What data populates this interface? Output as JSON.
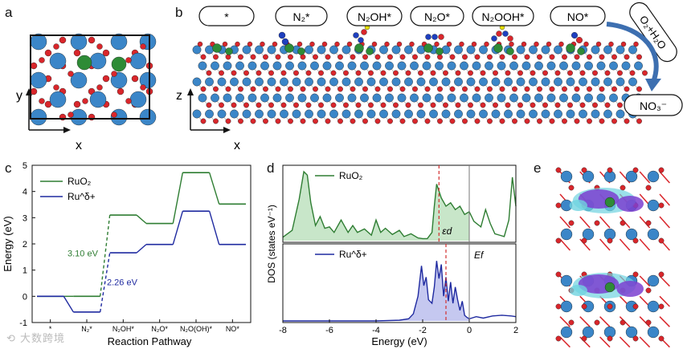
{
  "panels": {
    "a": {
      "label": "a",
      "axis_y": "y",
      "axis_x": "x"
    },
    "b": {
      "label": "b",
      "species": [
        "*",
        "N₂*",
        "N₂OH*",
        "N₂O*",
        "N₂OOH*",
        "NO*"
      ],
      "reagent": "O₂+H₂O",
      "product": "NO₃⁻",
      "axis_z": "z",
      "axis_x": "x"
    },
    "c": {
      "label": "c"
    },
    "d": {
      "label": "d"
    },
    "e": {
      "label": "e"
    }
  },
  "colors": {
    "ru": "#3b86c8",
    "o": "#d9262b",
    "n": "#1e3fbf",
    "cl": "#2e8b36",
    "h": "#e6e000",
    "ruo2": "#2e7d32",
    "rud": "#1f2aa0",
    "fill_ruo2": "#c8e6c9",
    "fill_rud": "#c5c8f0",
    "ed_line": "#d32f2f",
    "iso_purple": "#7b3fd0",
    "iso_cyan": "#6fd3e0",
    "arrow": "#3d6fb0"
  },
  "chart_data": [
    {
      "type": "line",
      "panel": "c",
      "title": "",
      "xlabel": "Reaction Pathway",
      "ylabel": "Energy (eV)",
      "ylim": [
        -1,
        5
      ],
      "yticks": [
        -1,
        0,
        1,
        2,
        3,
        4,
        5
      ],
      "categories": [
        "*",
        "N₂*",
        "N₂OH*",
        "N₂O*",
        "N₂O(OH)*",
        "NO*"
      ],
      "series": [
        {
          "name": "RuO₂",
          "values": [
            0.0,
            0.0,
            3.1,
            2.78,
            4.72,
            3.52
          ]
        },
        {
          "name": "Ru^δ+",
          "values": [
            0.0,
            -0.6,
            1.66,
            1.98,
            3.25,
            1.98
          ]
        }
      ],
      "annotations": [
        {
          "text": "3.10 eV",
          "series": "RuO₂"
        },
        {
          "text": "2.26 eV",
          "series": "Ru^δ+"
        }
      ]
    },
    {
      "type": "area",
      "panel": "d",
      "title": "",
      "xlabel": "Energy (eV)",
      "ylabel": "DOS (states eV⁻¹)",
      "xlim": [
        -8,
        2
      ],
      "xticks": [
        -8,
        -6,
        -4,
        -2,
        0,
        2
      ],
      "markers": [
        {
          "name": "εd",
          "x": -1.3,
          "subplot": 0
        },
        {
          "name": "εd",
          "x": -1.0,
          "subplot": 1
        },
        {
          "name": "Ef",
          "x": 0.0
        }
      ],
      "series": [
        {
          "name": "RuO₂",
          "x": [
            -8,
            -7.6,
            -7.3,
            -7.1,
            -6.95,
            -6.8,
            -6.6,
            -6.4,
            -6.2,
            -6.0,
            -5.8,
            -5.5,
            -5.2,
            -5.0,
            -4.8,
            -4.5,
            -4.2,
            -4.0,
            -3.8,
            -3.6,
            -3.3,
            -3.0,
            -2.8,
            -2.5,
            -2.2,
            -2.0,
            -1.8,
            -1.6,
            -1.5,
            -1.4,
            -1.2,
            -1.0,
            -0.8,
            -0.6,
            -0.4,
            -0.2,
            0.0,
            0.2,
            0.5,
            0.7,
            0.9,
            1.1,
            1.3,
            1.5,
            1.7,
            1.85,
            2.0
          ],
          "values": [
            0.05,
            0.15,
            0.6,
            1.0,
            0.95,
            0.55,
            0.22,
            0.35,
            0.18,
            0.2,
            0.12,
            0.3,
            0.12,
            0.22,
            0.12,
            0.17,
            0.08,
            0.3,
            0.12,
            0.18,
            0.09,
            0.15,
            0.06,
            0.1,
            0.04,
            0.03,
            0.03,
            0.12,
            0.5,
            0.82,
            0.62,
            0.5,
            0.55,
            0.45,
            0.5,
            0.38,
            0.42,
            0.28,
            0.2,
            0.45,
            0.25,
            0.1,
            0.08,
            0.06,
            0.3,
            0.92,
            0.5
          ]
        },
        {
          "name": "Ru^δ+",
          "x": [
            -8,
            -7,
            -6,
            -5,
            -4,
            -3,
            -2.6,
            -2.4,
            -2.2,
            -2.05,
            -1.95,
            -1.85,
            -1.75,
            -1.6,
            -1.5,
            -1.4,
            -1.3,
            -1.2,
            -1.1,
            -1.0,
            -0.9,
            -0.8,
            -0.7,
            -0.6,
            -0.5,
            -0.4,
            -0.3,
            -0.2,
            -0.1,
            0.0,
            0.3,
            0.6,
            1.0,
            1.4,
            1.8,
            2.0
          ],
          "values": [
            0.0,
            0.0,
            0.0,
            0.0,
            0.0,
            0.01,
            0.03,
            0.1,
            0.35,
            0.78,
            0.5,
            0.62,
            0.3,
            0.25,
            0.48,
            0.85,
            0.6,
            0.8,
            0.35,
            0.62,
            0.28,
            0.55,
            0.25,
            0.48,
            0.3,
            0.15,
            0.28,
            0.08,
            0.05,
            0.03,
            0.06,
            0.04,
            0.07,
            0.08,
            0.07,
            0.06
          ]
        }
      ]
    }
  ],
  "watermark": "大数跨境"
}
